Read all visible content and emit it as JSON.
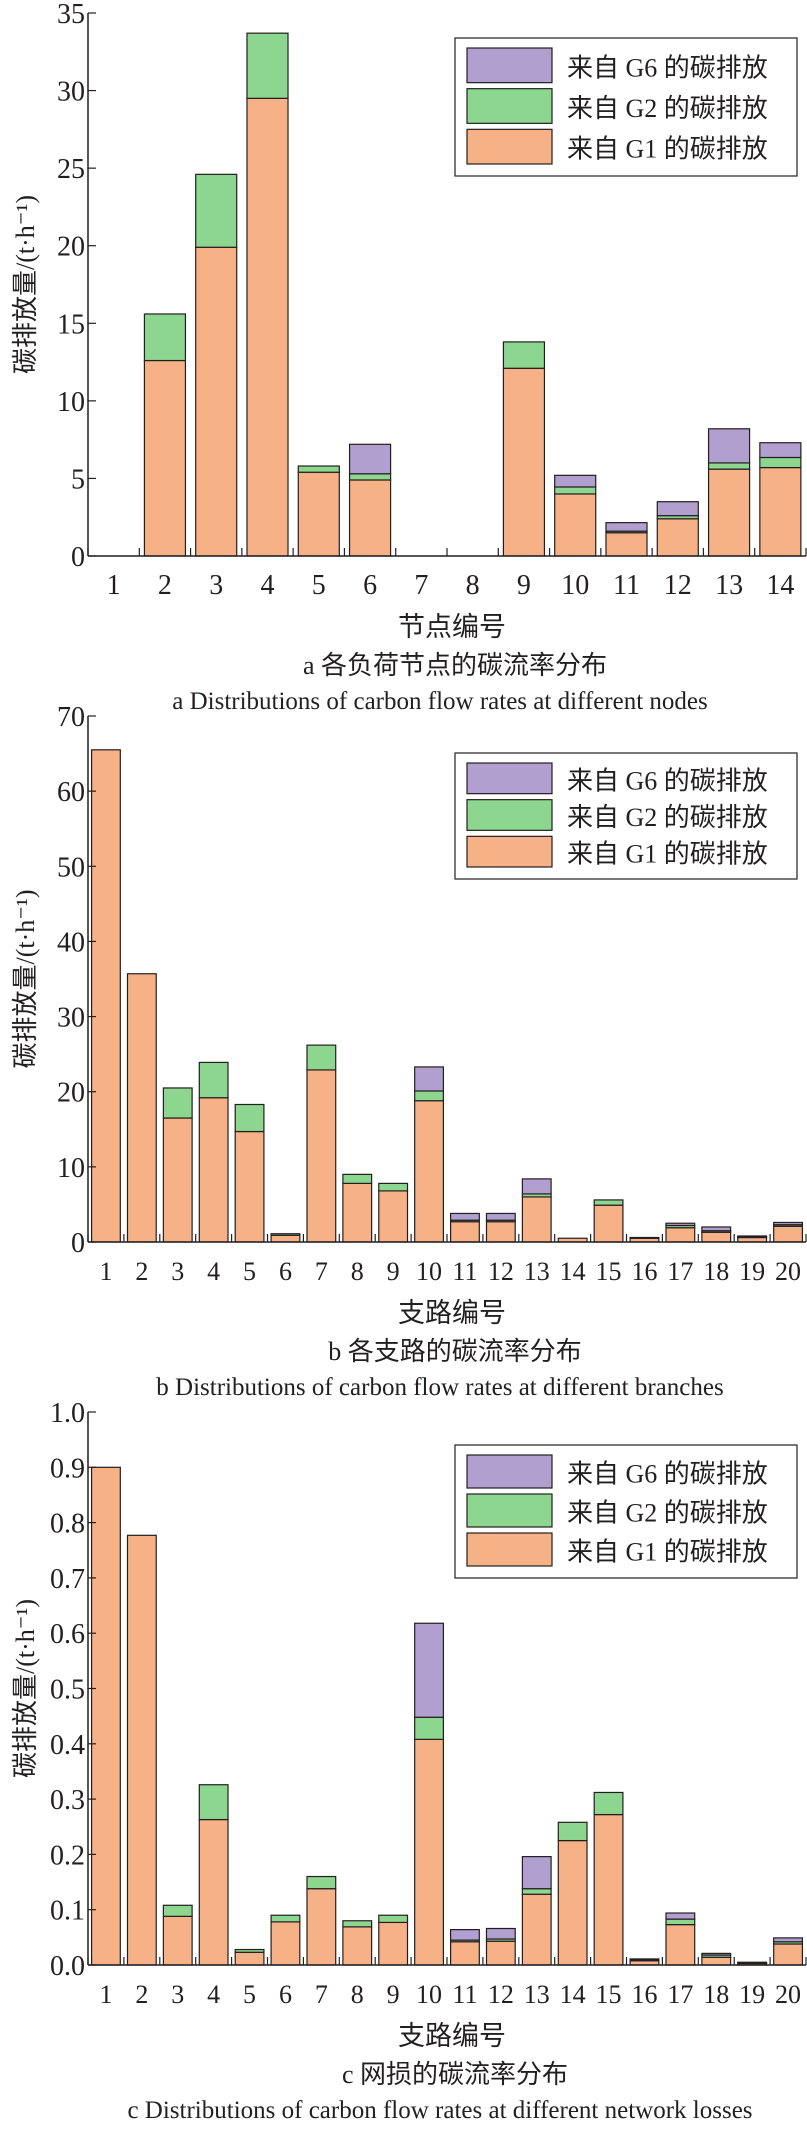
{
  "colors": {
    "G1": "#F6B186",
    "G2": "#8CD68F",
    "G6": "#B19FD0",
    "edge": "#231f20"
  },
  "chart_data": [
    {
      "type": "bar",
      "stacked": true,
      "id": "a",
      "ylabel": "碳排放量/(t·h⁻¹)",
      "xlabel": "节点编号",
      "caption_cn": "a  各负荷节点的碳流率分布",
      "caption_en": "a  Distributions of carbon flow rates at different nodes",
      "ylim": [
        0,
        35
      ],
      "yticks": [
        "0",
        "5",
        "10",
        "15",
        "20",
        "25",
        "30",
        "35"
      ],
      "ytick_values": [
        0,
        5,
        10,
        15,
        20,
        25,
        30,
        35
      ],
      "categories": [
        "1",
        "2",
        "3",
        "4",
        "5",
        "6",
        "7",
        "8",
        "9",
        "10",
        "11",
        "12",
        "13",
        "14"
      ],
      "legend": [
        "来自 G6 的碳排放",
        "来自 G2 的碳排放",
        "来自 G1 的碳排放"
      ],
      "legend_position": "top-right",
      "series": [
        {
          "name": "来自 G1 的碳排放",
          "key": "G1",
          "values": [
            0,
            12.6,
            19.9,
            29.5,
            5.4,
            4.9,
            0,
            0,
            12.1,
            4.0,
            1.5,
            2.4,
            5.6,
            5.7
          ]
        },
        {
          "name": "来自 G2 的碳排放",
          "key": "G2",
          "values": [
            0,
            3.0,
            4.7,
            4.2,
            0.4,
            0.4,
            0,
            0,
            1.7,
            0.45,
            0.1,
            0.2,
            0.4,
            0.65
          ]
        },
        {
          "name": "来自 G6 的碳排放",
          "key": "G6",
          "values": [
            0,
            0,
            0,
            0,
            0,
            1.9,
            0,
            0,
            0,
            0.75,
            0.55,
            0.9,
            2.2,
            0.95
          ]
        }
      ]
    },
    {
      "type": "bar",
      "stacked": true,
      "id": "b",
      "ylabel": "碳排放量/(t·h⁻¹)",
      "xlabel": "支路编号",
      "caption_cn": "b  各支路的碳流率分布",
      "caption_en": "b  Distributions of carbon flow rates at different branches",
      "ylim": [
        0,
        70
      ],
      "yticks": [
        "0",
        "10",
        "20",
        "30",
        "40",
        "50",
        "60",
        "70"
      ],
      "ytick_values": [
        0,
        10,
        20,
        30,
        40,
        50,
        60,
        70
      ],
      "categories": [
        "1",
        "2",
        "3",
        "4",
        "5",
        "6",
        "7",
        "8",
        "9",
        "10",
        "11",
        "12",
        "13",
        "14",
        "15",
        "16",
        "17",
        "18",
        "19",
        "20"
      ],
      "legend": [
        "来自 G6 的碳排放",
        "来自 G2 的碳排放",
        "来自 G1 的碳排放"
      ],
      "legend_position": "top-right",
      "series": [
        {
          "name": "来自 G1 的碳排放",
          "key": "G1",
          "values": [
            65.5,
            35.7,
            16.5,
            19.2,
            14.7,
            0.9,
            22.9,
            7.8,
            6.8,
            18.8,
            2.7,
            2.7,
            6.0,
            0.5,
            4.9,
            0.5,
            1.9,
            1.3,
            0.6,
            2.1
          ]
        },
        {
          "name": "来自 G2 的碳排放",
          "key": "G2",
          "values": [
            0,
            0,
            4.0,
            4.7,
            3.6,
            0.2,
            3.3,
            1.2,
            1.0,
            1.3,
            0.2,
            0.2,
            0.4,
            0,
            0.7,
            0.1,
            0.3,
            0.2,
            0.1,
            0.2
          ]
        },
        {
          "name": "来自 G6 的碳排放",
          "key": "G6",
          "values": [
            0,
            0,
            0,
            0,
            0,
            0,
            0,
            0,
            0,
            3.2,
            0.9,
            0.9,
            2.0,
            0,
            0,
            0,
            0.3,
            0.5,
            0.1,
            0.3
          ]
        }
      ]
    },
    {
      "type": "bar",
      "stacked": true,
      "id": "c",
      "ylabel": "碳排放量/(t·h⁻¹)",
      "xlabel": "支路编号",
      "caption_cn": "c  网损的碳流率分布",
      "caption_en": "c  Distributions of carbon flow rates at different network losses",
      "ylim": [
        0,
        1.0
      ],
      "yticks": [
        "0.0",
        "0.1",
        "0.2",
        "0.3",
        "0.4",
        "0.5",
        "0.6",
        "0.7",
        "0.8",
        "0.9",
        "1.0"
      ],
      "ytick_values": [
        0,
        0.1,
        0.2,
        0.3,
        0.4,
        0.5,
        0.6,
        0.7,
        0.8,
        0.9,
        1.0
      ],
      "categories": [
        "1",
        "2",
        "3",
        "4",
        "5",
        "6",
        "7",
        "8",
        "9",
        "10",
        "11",
        "12",
        "13",
        "14",
        "15",
        "16",
        "17",
        "18",
        "19",
        "20"
      ],
      "legend": [
        "来自 G6 的碳排放",
        "来自 G2 的碳排放",
        "来自 G1 的碳排放"
      ],
      "legend_position": "top-right",
      "series": [
        {
          "name": "来自 G1 的碳排放",
          "key": "G1",
          "values": [
            0.9,
            0.777,
            0.088,
            0.263,
            0.023,
            0.078,
            0.138,
            0.069,
            0.077,
            0.408,
            0.042,
            0.043,
            0.128,
            0.225,
            0.272,
            0.008,
            0.073,
            0.014,
            0.003,
            0.038
          ]
        },
        {
          "name": "来自 G2 的碳排放",
          "key": "G2",
          "values": [
            0,
            0,
            0.02,
            0.063,
            0.005,
            0.012,
            0.022,
            0.011,
            0.013,
            0.04,
            0.003,
            0.004,
            0.01,
            0.033,
            0.04,
            0.001,
            0.01,
            0.004,
            0.001,
            0.004
          ]
        },
        {
          "name": "来自 G6 的碳排放",
          "key": "G6",
          "values": [
            0,
            0,
            0,
            0,
            0,
            0,
            0,
            0,
            0,
            0.17,
            0.019,
            0.019,
            0.058,
            0,
            0,
            0.002,
            0.011,
            0.003,
            0.001,
            0.007
          ]
        }
      ]
    }
  ]
}
